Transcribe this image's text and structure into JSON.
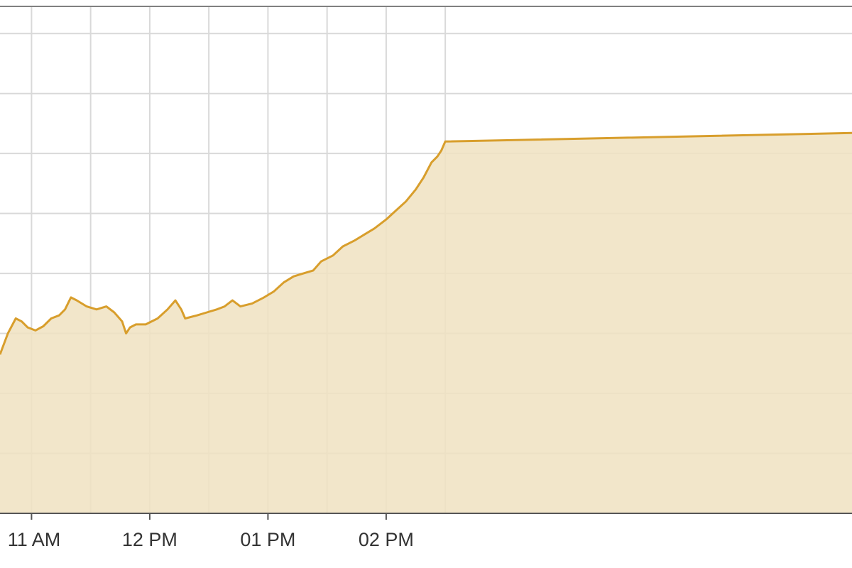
{
  "chart_data": {
    "type": "area",
    "title": "",
    "xlabel": "",
    "ylabel": "",
    "x_tick_labels": [
      "11 AM",
      "12 PM",
      "01 PM",
      "02 PM"
    ],
    "x_tick_times": [
      "11:00",
      "12:00",
      "13:00",
      "14:00"
    ],
    "x_range": [
      "10:44",
      "14:46"
    ],
    "y_range": [
      0,
      8.5
    ],
    "y_gridlines": [
      1,
      2,
      3,
      4,
      5,
      6,
      7,
      8
    ],
    "grid": true,
    "colors": {
      "line": "#d89e2c",
      "fill": "#f0e2c1",
      "grid": "#d9d9d9",
      "axis": "#555555",
      "frame": "#808080"
    },
    "series": [
      {
        "name": "",
        "points": [
          [
            "10:44",
            2.65
          ],
          [
            "10:48",
            3.0
          ],
          [
            "10:52",
            3.25
          ],
          [
            "10:55",
            3.2
          ],
          [
            "10:58",
            3.1
          ],
          [
            "11:02",
            3.05
          ],
          [
            "11:06",
            3.12
          ],
          [
            "11:10",
            3.25
          ],
          [
            "11:14",
            3.3
          ],
          [
            "11:17",
            3.4
          ],
          [
            "11:20",
            3.6
          ],
          [
            "11:23",
            3.55
          ],
          [
            "11:28",
            3.45
          ],
          [
            "11:33",
            3.4
          ],
          [
            "11:38",
            3.45
          ],
          [
            "11:42",
            3.35
          ],
          [
            "11:46",
            3.2
          ],
          [
            "11:48",
            3.0
          ],
          [
            "11:50",
            3.1
          ],
          [
            "11:53",
            3.15
          ],
          [
            "11:58",
            3.15
          ],
          [
            "12:04",
            3.25
          ],
          [
            "12:09",
            3.4
          ],
          [
            "12:13",
            3.55
          ],
          [
            "12:16",
            3.4
          ],
          [
            "12:18",
            3.25
          ],
          [
            "12:24",
            3.3
          ],
          [
            "12:29",
            3.35
          ],
          [
            "12:34",
            3.4
          ],
          [
            "12:38",
            3.45
          ],
          [
            "12:42",
            3.55
          ],
          [
            "12:46",
            3.45
          ],
          [
            "12:52",
            3.5
          ],
          [
            "12:58",
            3.6
          ],
          [
            "13:03",
            3.7
          ],
          [
            "13:08",
            3.85
          ],
          [
            "13:13",
            3.95
          ],
          [
            "13:18",
            4.0
          ],
          [
            "13:23",
            4.05
          ],
          [
            "13:27",
            4.2
          ],
          [
            "13:33",
            4.3
          ],
          [
            "13:38",
            4.45
          ],
          [
            "13:44",
            4.55
          ],
          [
            "13:49",
            4.65
          ],
          [
            "13:54",
            4.75
          ],
          [
            "14:00",
            4.9
          ],
          [
            "14:05",
            5.05
          ],
          [
            "14:10",
            5.2
          ],
          [
            "14:15",
            5.4
          ],
          [
            "14:19",
            5.6
          ],
          [
            "14:23",
            5.85
          ],
          [
            "14:26",
            5.95
          ],
          [
            "14:28",
            6.05
          ],
          [
            "14:30",
            6.2
          ]
        ]
      }
    ]
  }
}
